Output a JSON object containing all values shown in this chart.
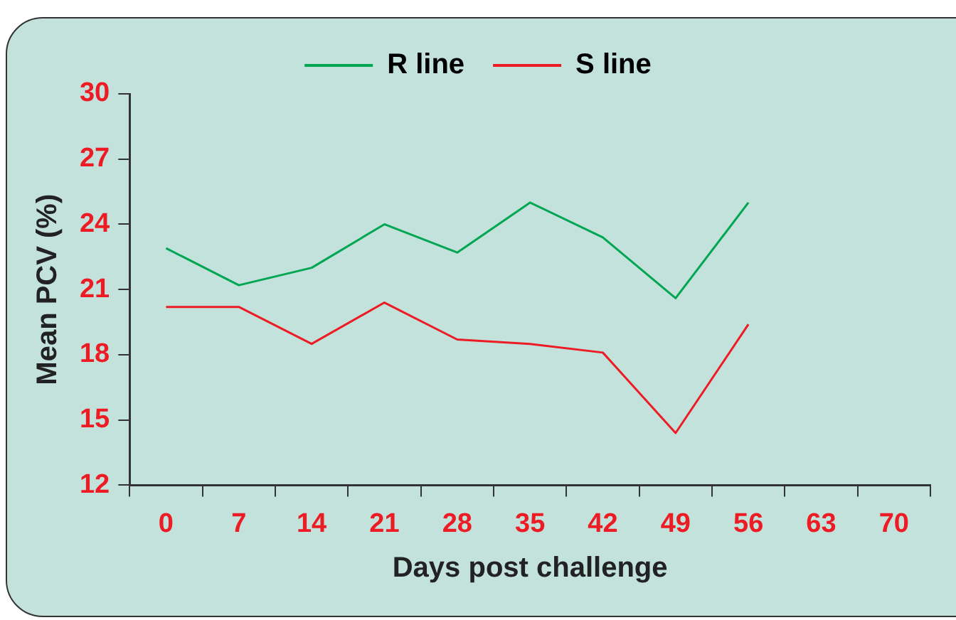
{
  "chart_data": {
    "type": "line",
    "xlabel": "Days post challenge",
    "ylabel": "Mean PCV (%)",
    "categories": [
      "0",
      "7",
      "14",
      "21",
      "28",
      "35",
      "42",
      "49",
      "56",
      "63",
      "70"
    ],
    "series": [
      {
        "name": "R line",
        "color": "#00a651",
        "values": [
          22.9,
          21.2,
          22.0,
          24.0,
          22.7,
          25.0,
          23.4,
          20.6,
          25.0,
          null,
          null
        ]
      },
      {
        "name": "S line",
        "color": "#ed1c24",
        "values": [
          20.2,
          20.2,
          18.5,
          20.4,
          18.7,
          18.5,
          18.1,
          14.4,
          19.4,
          null,
          null
        ]
      }
    ],
    "ylim": [
      12,
      30
    ],
    "yticks": [
      12,
      15,
      18,
      21,
      24,
      27,
      30
    ],
    "grid": false,
    "legend": "top",
    "marker": "none",
    "line_style": "solid"
  }
}
